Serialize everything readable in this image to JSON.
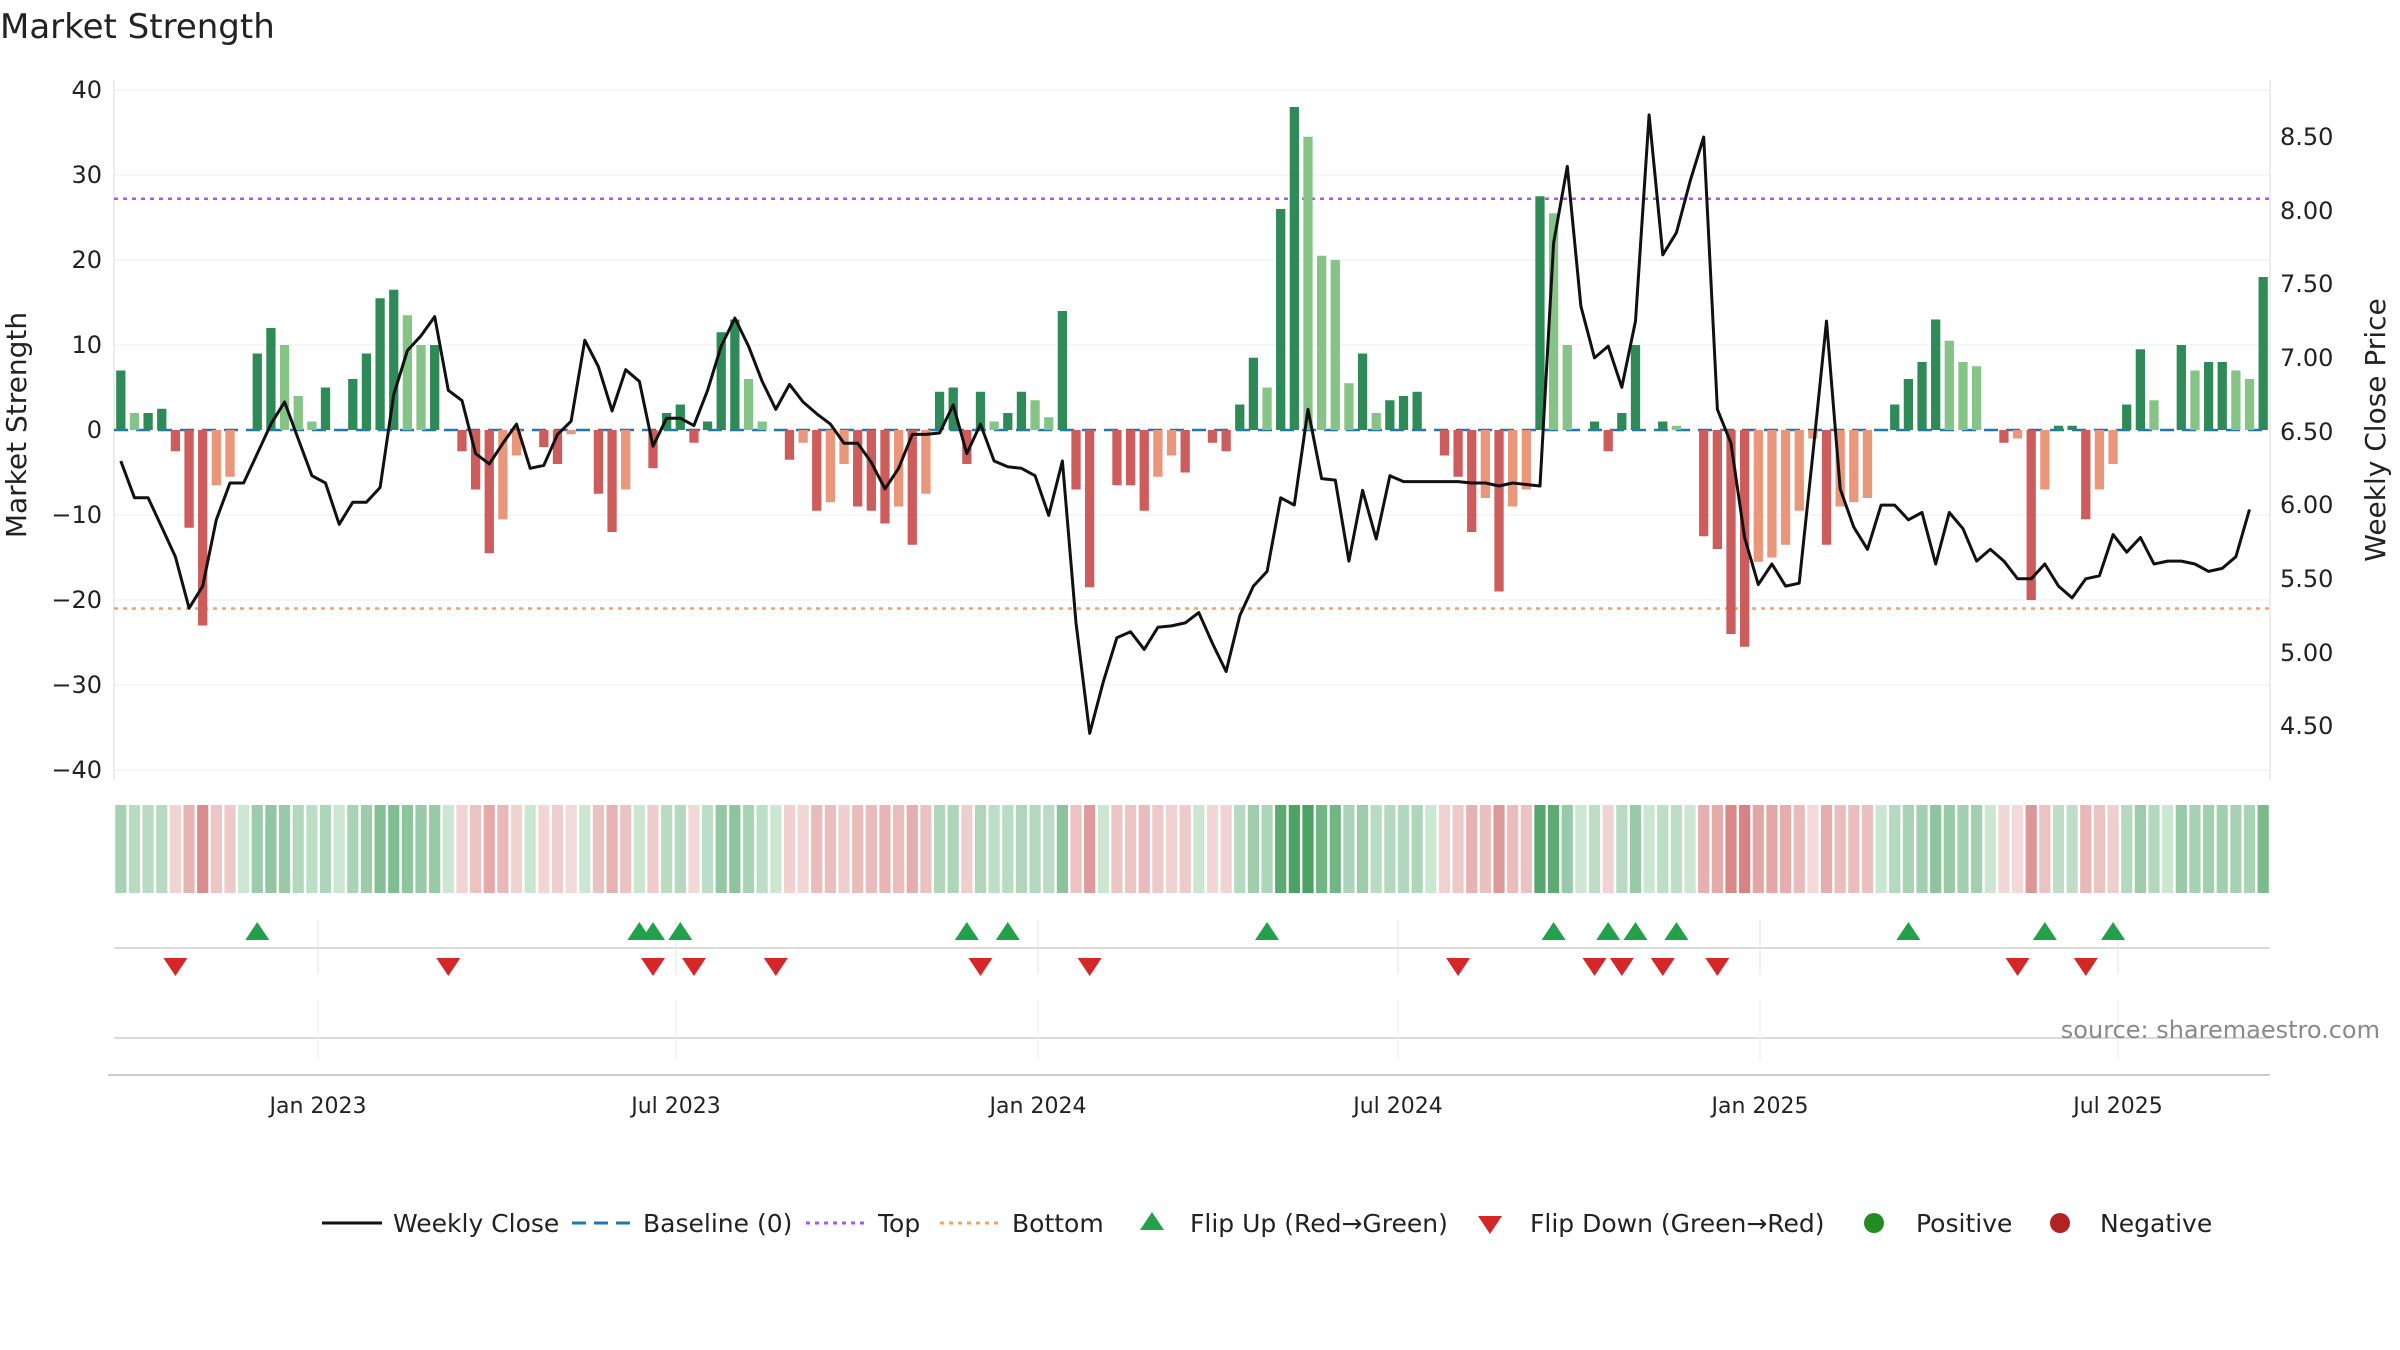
{
  "chart_data": {
    "type": "bar",
    "title": "Market Strength",
    "ylabel_left": "Market Strength",
    "ylabel_right": "Weekly Close Price",
    "ylim_left": [
      -40,
      40
    ],
    "ylim_right": [
      4.2,
      8.8
    ],
    "yticks_left": [
      "40",
      "30",
      "20",
      "10",
      "0",
      "−10",
      "−20",
      "−30",
      "−40"
    ],
    "yticks_right": [
      "8.50",
      "8.00",
      "7.50",
      "7.00",
      "6.50",
      "6.00",
      "5.50",
      "5.00",
      "4.50"
    ],
    "xticks": [
      "Jan 2023",
      "Jul 2023",
      "Jan 2024",
      "Jul 2024",
      "Jan 2025",
      "Jul 2025"
    ],
    "top_level": 27.2,
    "bottom_level": -21,
    "baseline": 0,
    "source": "source: sharemaestro.com",
    "legend": [
      "Weekly Close",
      "Baseline (0)",
      "Top",
      "Bottom",
      "Flip Up (Red→Green)",
      "Flip Down (Green→Red)",
      "Positive",
      "Negative"
    ],
    "start_week": "2022-09-12",
    "strength": [
      7,
      2,
      2,
      2.5,
      -2.5,
      -11.5,
      -23,
      -6.5,
      -5.5,
      0,
      9,
      12,
      10,
      4,
      1,
      5,
      0,
      6,
      9,
      15.5,
      16.5,
      13.5,
      10,
      10,
      0,
      -2.5,
      -7,
      -14.5,
      -10.5,
      -3,
      0,
      -2,
      -4,
      -0.5,
      0,
      -7.5,
      -12,
      -7,
      0,
      -4.5,
      2,
      3,
      -1.5,
      1,
      11.5,
      13,
      6,
      1,
      0,
      -3.5,
      -1.5,
      -9.5,
      -8.5,
      -4,
      -9,
      -9.5,
      -11,
      -9,
      -13.5,
      -7.5,
      4.5,
      5,
      -4,
      4.5,
      1,
      2,
      4.5,
      3.5,
      1.5,
      14,
      -7,
      -18.5,
      0,
      -6.5,
      -6.5,
      -9.5,
      -5.5,
      -3,
      -5,
      0,
      -1.5,
      -2.5,
      3,
      8.5,
      5,
      26,
      38,
      34.5,
      20.5,
      20,
      5.5,
      9,
      2,
      3.5,
      4,
      4.5,
      0,
      -3,
      -5.5,
      -12,
      -8,
      -19,
      -9,
      -7,
      27.5,
      25.5,
      10,
      0,
      1,
      -2.5,
      2,
      10,
      0,
      1,
      0.5,
      0,
      -12.5,
      -14,
      -24,
      -25.5,
      -15.5,
      -15,
      -13.5,
      -9.5,
      -1,
      -13.5,
      -9,
      -8.5,
      -8,
      0,
      3,
      6,
      8,
      13,
      10.5,
      8,
      7.5,
      0,
      -1.5,
      -1,
      -20,
      -7,
      0.5,
      0.5,
      -10.5,
      -7,
      -4,
      3,
      9.5,
      3.5,
      0,
      10,
      7,
      8,
      8,
      7,
      6,
      18
    ],
    "price": [
      6.3,
      6.05,
      6.05,
      5.85,
      5.65,
      5.3,
      5.45,
      5.9,
      6.15,
      6.15,
      6.35,
      6.55,
      6.7,
      6.45,
      6.2,
      6.15,
      5.87,
      6.02,
      6.02,
      6.12,
      6.75,
      7.05,
      7.15,
      7.28,
      6.78,
      6.71,
      6.35,
      6.28,
      6.42,
      6.55,
      6.25,
      6.27,
      6.48,
      6.57,
      7.12,
      6.94,
      6.64,
      6.92,
      6.84,
      6.4,
      6.59,
      6.59,
      6.54,
      6.78,
      7.08,
      7.27,
      7.08,
      6.84,
      6.65,
      6.82,
      6.7,
      6.62,
      6.55,
      6.42,
      6.42,
      6.29,
      6.11,
      6.25,
      6.48,
      6.48,
      6.49,
      6.68,
      6.35,
      6.55,
      6.3,
      6.26,
      6.25,
      6.2,
      5.93,
      6.3,
      5.2,
      4.45,
      4.8,
      5.1,
      5.14,
      5.02,
      5.17,
      5.18,
      5.2,
      5.27,
      5.06,
      4.87,
      5.25,
      5.45,
      5.55,
      6.05,
      6,
      6.65,
      6.18,
      6.17,
      5.62,
      6.1,
      5.77,
      6.2,
      6.16,
      6.16,
      6.16,
      6.16,
      6.16,
      6.15,
      6.15,
      6.13,
      6.15,
      6.14,
      6.13,
      7.78,
      8.3,
      7.35,
      7.0,
      7.08,
      6.8,
      7.25,
      8.65,
      7.7,
      7.85,
      8.2,
      8.5,
      6.65,
      6.42,
      5.78,
      5.46,
      5.6,
      5.45,
      5.47,
      6.35,
      7.25,
      6.11,
      5.85,
      5.7,
      6.0,
      6.0,
      5.9,
      5.95,
      5.6,
      5.95,
      5.84,
      5.62,
      5.7,
      5.62,
      5.5,
      5.5,
      5.6,
      5.45,
      5.37,
      5.5,
      5.52,
      5.8,
      5.68,
      5.78,
      5.6,
      5.62,
      5.62,
      5.6,
      5.55,
      5.57,
      5.65,
      5.97
    ],
    "flip_up_weeks": [
      10,
      38,
      39,
      41,
      62,
      65,
      84,
      105,
      109,
      111,
      114,
      131,
      141,
      146
    ],
    "flip_down_weeks": [
      4,
      24,
      39,
      42,
      48,
      63,
      71,
      98,
      108,
      110,
      113,
      117,
      139,
      144
    ]
  },
  "colors": {
    "pos_strong": "#2e8b57",
    "pos_light": "#86c386",
    "neg_strong": "#cd5c5c",
    "neg_light": "#e9967a",
    "top_line": "#a855f7",
    "bottom_line": "#f4a460",
    "baseline": "#1f77b4",
    "price_line": "#111111",
    "flip_up": "#22a04a",
    "flip_down": "#d62728",
    "positive_dot": "#228b22",
    "negative_dot": "#b22222"
  }
}
